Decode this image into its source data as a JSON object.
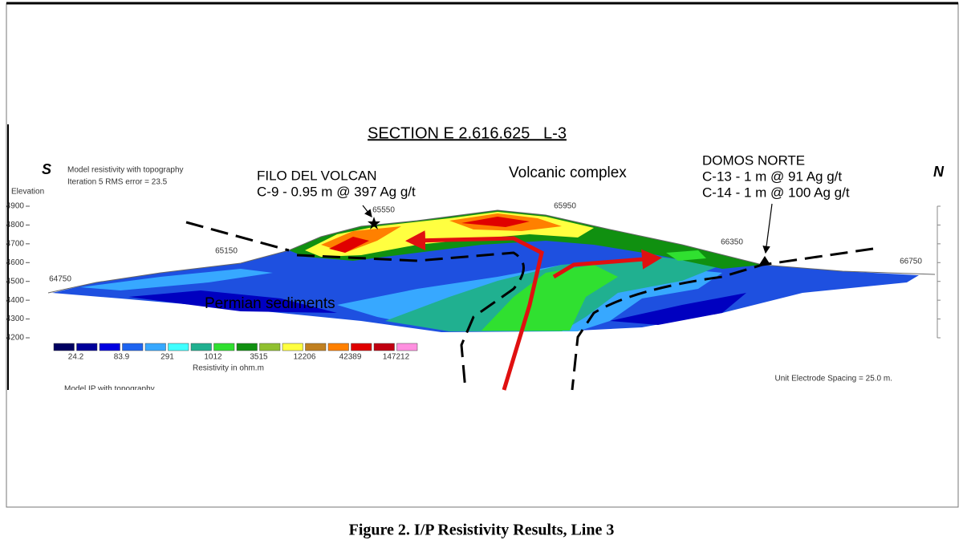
{
  "section_title": "SECTION E 2.616.625   L-3",
  "direction": {
    "south": "S",
    "north": "N"
  },
  "model": {
    "title": "Model resistivity with topography",
    "iteration": "Iteration 5 RMS error = 23.5"
  },
  "elevation_axis": {
    "label": "Elevation",
    "ticks": [
      4900,
      4800,
      4700,
      4600,
      4500,
      4400,
      4300,
      4200
    ]
  },
  "stations": [
    64750,
    65150,
    65550,
    65950,
    66350,
    66750
  ],
  "annotations": {
    "filo_del_volcan": {
      "name": "FILO DEL VOLCAN",
      "sample": "C-9 - 0.95 m @ 397 Ag g/t"
    },
    "volcanic_complex": "Volcanic complex",
    "domos_norte": {
      "name": "DOMOS NORTE",
      "samples": [
        "C-13 - 1 m @ 91 Ag g/t",
        "C-14 - 1 m @ 100 Ag g/t"
      ]
    },
    "permian_sediments": "Permian sediments"
  },
  "legend": {
    "colors": [
      "#000060",
      "#00009a",
      "#0000e0",
      "#1e64f0",
      "#37a8ff",
      "#40ffff",
      "#20b090",
      "#30e030",
      "#109010",
      "#90c030",
      "#ffff40",
      "#c08020",
      "#ff8000",
      "#e00000",
      "#c00010",
      "#ff90e0"
    ],
    "labels": [
      24.2,
      83.9,
      291,
      1012,
      3515,
      12206,
      42389,
      147212
    ],
    "title": "Resistivity in ohm.m"
  },
  "electrode_spacing": "Unit Electrode Spacing = 25.0 m.",
  "lower_panel_title": "Model IP with topography",
  "caption": "Figure 2. I/P Resistivity Results, Line 3"
}
